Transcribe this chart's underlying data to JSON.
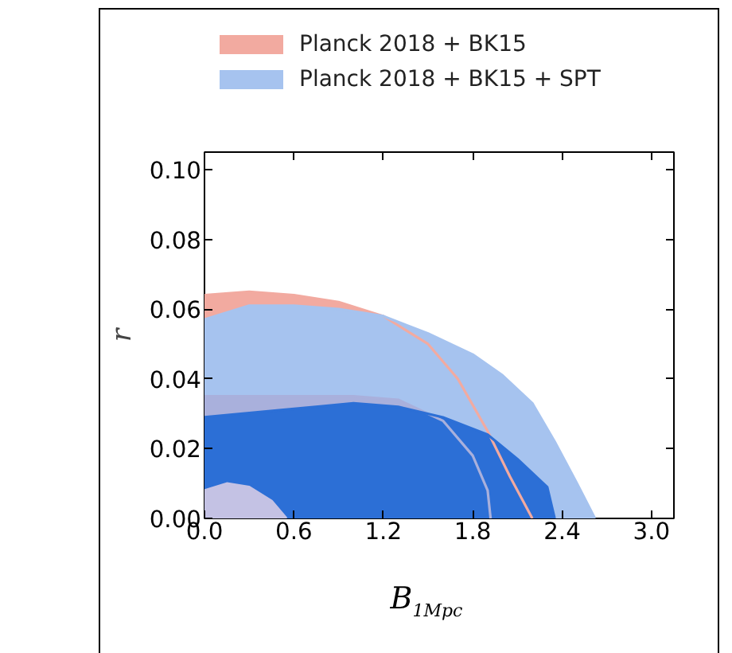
{
  "chart_data": {
    "type": "area",
    "xlabel": "B$_{1Mpc}$",
    "ylabel": "r",
    "xlim": [
      0,
      3.15
    ],
    "ylim": [
      0,
      0.105
    ],
    "xticks": [
      {
        "value": 0,
        "label": "0.0"
      },
      {
        "value": 0.6,
        "label": "0.6"
      },
      {
        "value": 1.2,
        "label": "1.2"
      },
      {
        "value": 1.8,
        "label": "1.8"
      },
      {
        "value": 2.4,
        "label": "2.4"
      },
      {
        "value": 3.0,
        "label": "3.0"
      }
    ],
    "yticks": [
      {
        "value": 0,
        "label": "0.00"
      },
      {
        "value": 0.02,
        "label": "0.02"
      },
      {
        "value": 0.04,
        "label": "0.04"
      },
      {
        "value": 0.06,
        "label": "0.06"
      },
      {
        "value": 0.08,
        "label": "0.08"
      },
      {
        "value": 0.1,
        "label": "0.10"
      }
    ],
    "grid": false,
    "legend": "top",
    "series": [
      {
        "name": "Planck 2018 + BK15",
        "color": "#f2aaa0",
        "x": [
          0,
          0.3,
          0.6,
          0.9,
          1.2,
          1.5,
          1.7,
          1.9,
          2.05,
          2.2
        ],
        "values": [
          0.064,
          0.065,
          0.064,
          0.062,
          0.058,
          0.05,
          0.04,
          0.025,
          0.012,
          0
        ]
      },
      {
        "name": "Planck 2018 + BK15 + SPT",
        "color": "#a6c3ef",
        "x": [
          0,
          0.3,
          0.6,
          0.9,
          1.2,
          1.5,
          1.8,
          2.0,
          2.2,
          2.35,
          2.5,
          2.62
        ],
        "values": [
          0.057,
          0.061,
          0.061,
          0.06,
          0.058,
          0.053,
          0.047,
          0.041,
          0.033,
          0.022,
          0.01,
          0
        ]
      },
      {
        "color": "#a9b0dc",
        "x": [
          0,
          0.6,
          1.0,
          1.3,
          1.6,
          1.8,
          1.9,
          1.92
        ],
        "values": [
          0.035,
          0.035,
          0.035,
          0.034,
          0.028,
          0.018,
          0.008,
          0
        ]
      },
      {
        "color": "#2c6fd6",
        "x": [
          0,
          0.5,
          1.0,
          1.3,
          1.6,
          1.9,
          2.1,
          2.3,
          2.35
        ],
        "values": [
          0.029,
          0.031,
          0.033,
          0.032,
          0.029,
          0.024,
          0.017,
          0.009,
          0
        ]
      },
      {
        "color": "#c4c2e4",
        "x": [
          0,
          0.15,
          0.3,
          0.45,
          0.55
        ],
        "values": [
          0.008,
          0.01,
          0.009,
          0.005,
          0
        ]
      }
    ]
  }
}
